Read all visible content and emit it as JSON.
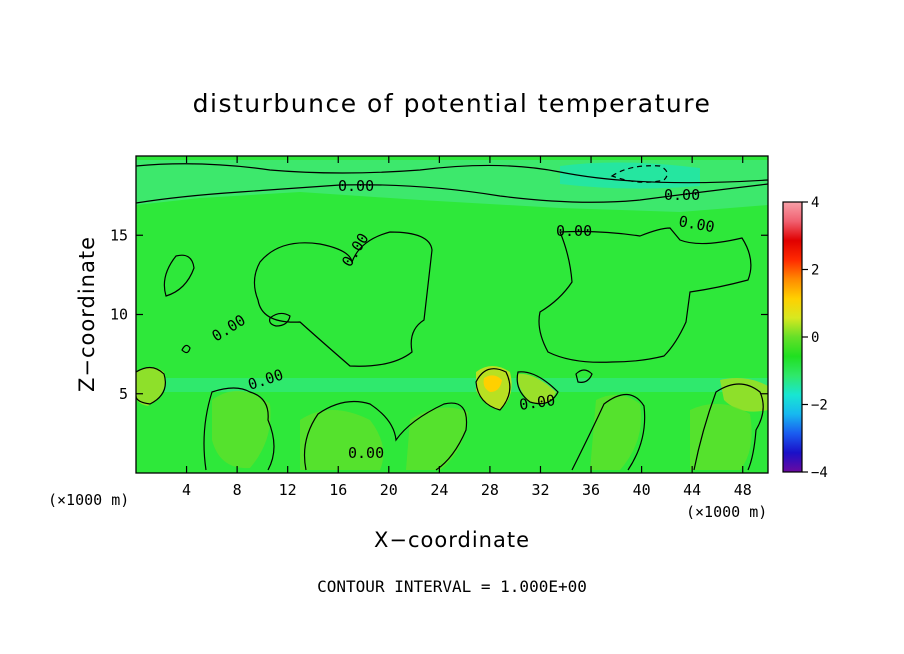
{
  "chart_data": {
    "type": "heatmap",
    "title": "disturbunce of potential temperature",
    "xlabel": "X−coordinate",
    "ylabel": "Z−coordinate",
    "x_unit": "(×1000 m)",
    "x_unit_right": "(×1000 m)",
    "xlim": [
      0,
      50
    ],
    "ylim": [
      0,
      20
    ],
    "x_ticks": [
      4,
      8,
      12,
      16,
      20,
      24,
      28,
      32,
      36,
      40,
      44,
      48
    ],
    "y_ticks": [
      5,
      10,
      15
    ],
    "colorbar": {
      "range": [
        -4,
        4
      ],
      "ticks": [
        "4",
        "2",
        "0",
        "−2",
        "−4"
      ],
      "tick_values": [
        4,
        2,
        0,
        -2,
        -4
      ],
      "colors": [
        "#6a0aa0",
        "#1a10c8",
        "#1a5cf0",
        "#17b8f0",
        "#18e6d2",
        "#2fe86a",
        "#20e020",
        "#66e028",
        "#d8e820",
        "#ffd000",
        "#ff8a00",
        "#ff2a00",
        "#e00000",
        "#f06070",
        "#f8a0a8"
      ]
    },
    "contour_labels": [
      "0.00",
      "0.00",
      "0.00",
      "0.00",
      "0.00",
      "0.00",
      "0.00",
      "0.00",
      "0.00"
    ],
    "grid": false,
    "footer": "CONTOUR INTERVAL = 1.000E+00"
  }
}
